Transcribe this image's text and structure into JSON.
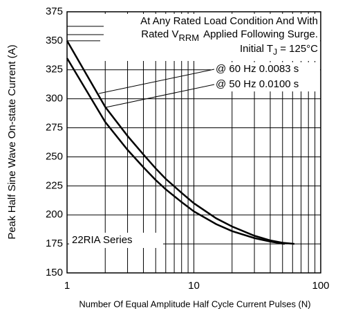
{
  "chart_data": {
    "type": "line",
    "xlabel": "Number Of Equal Amplitude Half Cycle Current Pulses (N)",
    "ylabel": "Peak Half Sine Wave On-state Current (A)",
    "xlog": true,
    "grid": true,
    "xlim": [
      1,
      100
    ],
    "xticks": [
      1,
      10,
      100
    ],
    "xminor": [
      2,
      3,
      4,
      5,
      6,
      7,
      8,
      9,
      20,
      30,
      40,
      50,
      60,
      70,
      80,
      90
    ],
    "ylim": [
      150,
      375
    ],
    "yticks": [
      150,
      175,
      200,
      225,
      250,
      275,
      300,
      325,
      350,
      375
    ],
    "note_line1": "At Any Rated Load Condition And With",
    "note_line2": [
      "Rated V",
      "RRM",
      "Applied Following Surge."
    ],
    "note_line3": [
      "Initial T",
      "J",
      " = 125°C"
    ],
    "series_label": "22RIA Series",
    "series": [
      {
        "name": "@ 60 Hz 0.0083 s",
        "color": "#000000",
        "x": [
          1,
          2,
          3,
          4,
          5,
          6,
          8,
          10,
          15,
          20,
          30,
          40,
          50,
          62
        ],
        "values": [
          350,
          293,
          268,
          252,
          240,
          231,
          219,
          210,
          197,
          190,
          182,
          178,
          176,
          175
        ]
      },
      {
        "name": "@ 50 Hz 0.0100 s",
        "color": "#000000",
        "x": [
          1,
          2,
          3,
          4,
          5,
          6,
          8,
          10,
          15,
          20,
          30,
          40,
          52
        ],
        "values": [
          335,
          280,
          256,
          241,
          230,
          222,
          211,
          203,
          192,
          186,
          180,
          177,
          175
        ]
      }
    ]
  }
}
